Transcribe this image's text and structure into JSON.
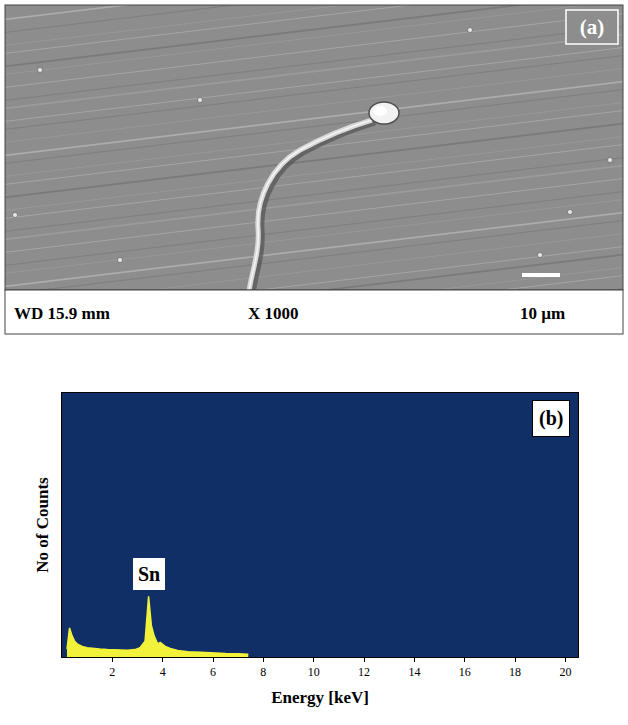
{
  "image_panel": {
    "label": "(a)",
    "caption": {
      "working_distance": "WD 15.9 mm",
      "magnification": "X 1000",
      "scale_bar": "10 µm"
    }
  },
  "chart_data": {
    "type": "line",
    "label": "(b)",
    "x_label": "Energy [keV]",
    "y_label": "No of Counts",
    "x": [
      0.2,
      0.3,
      0.4,
      0.5,
      0.6,
      0.8,
      1.0,
      1.2,
      1.5,
      1.8,
      2.0,
      2.3,
      2.6,
      2.9,
      3.1,
      3.3,
      3.44,
      3.55,
      3.66,
      3.8,
      3.9,
      4.1,
      4.3,
      4.6,
      5.0,
      5.5,
      6.0,
      6.5,
      7.0,
      7.4
    ],
    "values": [
      3,
      11,
      8,
      6,
      5,
      4,
      3.5,
      3.2,
      3,
      2.8,
      2.7,
      2.6,
      2.6,
      2.8,
      3.5,
      6,
      23,
      12,
      8,
      5,
      5.5,
      4,
      3.2,
      2.5,
      2,
      1.8,
      1.5,
      1.3,
      1.2,
      1.0
    ],
    "color": "#f2f23a",
    "annotations": [
      {
        "text": "Sn",
        "x": 3.44,
        "y": 23
      }
    ],
    "xlim": [
      0,
      20.5
    ],
    "xticks": [
      2,
      4,
      6,
      8,
      10,
      12,
      14,
      16,
      18,
      20
    ],
    "ylim": [
      0,
      100
    ],
    "tick_labels": "x",
    "grid": false
  }
}
